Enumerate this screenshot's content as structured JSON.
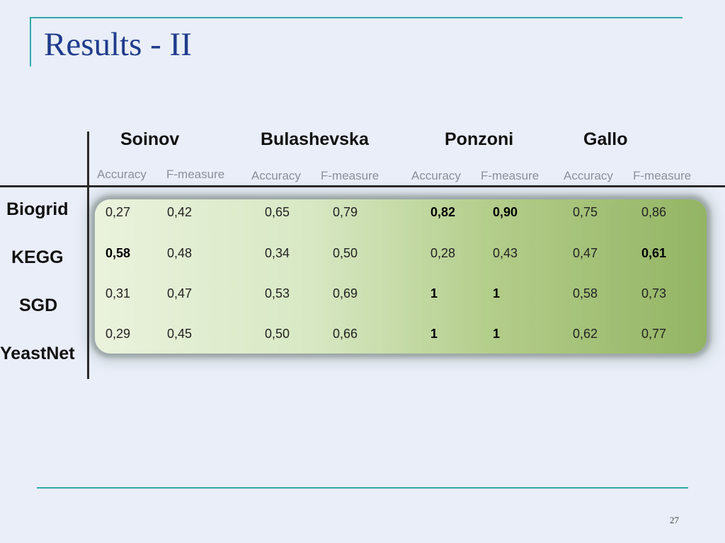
{
  "slide": {
    "title": "Results - II",
    "page_number": "27"
  },
  "table": {
    "groups": [
      "Soinov",
      "Bulashevska",
      "Ponzoni",
      "Gallo"
    ],
    "metric_labels": {
      "accuracy": "Accuracy",
      "fmeasure": "F-measure"
    },
    "rows": [
      {
        "label": "Biogrid",
        "values": [
          "0,27",
          "0,42",
          "0,65",
          "0,79",
          "0,82",
          "0,90",
          "0,75",
          "0,86"
        ],
        "bold": [
          false,
          false,
          false,
          false,
          true,
          true,
          false,
          false
        ]
      },
      {
        "label": "KEGG",
        "values": [
          "0,58",
          "0,48",
          "0,34",
          "0,50",
          "0,28",
          "0,43",
          "0,47",
          "0,61"
        ],
        "bold": [
          true,
          false,
          false,
          false,
          false,
          false,
          false,
          true
        ]
      },
      {
        "label": "SGD",
        "values": [
          "0,31",
          "0,47",
          "0,53",
          "0,69",
          "1",
          "1",
          "0,58",
          "0,73"
        ],
        "bold": [
          false,
          false,
          false,
          false,
          true,
          true,
          false,
          false
        ]
      },
      {
        "label": "YeastNet",
        "values": [
          "0,29",
          "0,45",
          "0,50",
          "0,66",
          "1",
          "1",
          "0,62",
          "0,77"
        ],
        "bold": [
          false,
          false,
          false,
          false,
          true,
          true,
          false,
          false
        ]
      }
    ],
    "colors": {
      "title": "#1f3c8c",
      "rule": "#2ea9a9",
      "metric_label": "#8a8f98",
      "highlight_start": "#eaf2dc",
      "highlight_end": "#93b463"
    }
  }
}
